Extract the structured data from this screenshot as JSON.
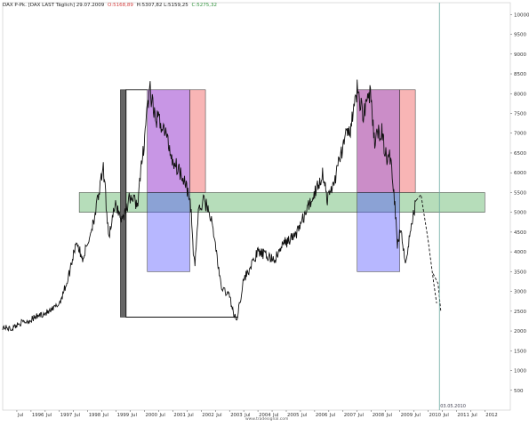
{
  "header": {
    "symbol": "DAX P-Pk. [DAX LAST Täglich] 29.07.2009",
    "open": "O:5168,89",
    "high_low": "H:5307,82 L:5159,25",
    "close": "C:5275,32"
  },
  "footer": {
    "source": "www.tradesignal.com"
  },
  "chart_data": {
    "type": "line",
    "title": "",
    "xlabel": "",
    "ylabel": "",
    "ylim": [
      0,
      10300
    ],
    "xlim": [
      1995.0,
      2012.9
    ],
    "yticks": [
      500,
      1000,
      1500,
      2000,
      2500,
      3000,
      3500,
      4000,
      4500,
      5000,
      5500,
      6000,
      6500,
      7000,
      7500,
      8000,
      8500,
      9000,
      9500,
      10000
    ],
    "xticks": [
      {
        "x": 1995.5,
        "label": "Jul"
      },
      {
        "x": 1996.0,
        "label": "1996"
      },
      {
        "x": 1996.5,
        "label": "Jul"
      },
      {
        "x": 1997.0,
        "label": "1997"
      },
      {
        "x": 1997.5,
        "label": "Jul"
      },
      {
        "x": 1998.0,
        "label": "1998"
      },
      {
        "x": 1998.5,
        "label": "Jul"
      },
      {
        "x": 1999.0,
        "label": "1999"
      },
      {
        "x": 1999.5,
        "label": "Jul"
      },
      {
        "x": 2000.0,
        "label": "2000"
      },
      {
        "x": 2000.5,
        "label": "Jul"
      },
      {
        "x": 2001.0,
        "label": "2001"
      },
      {
        "x": 2001.5,
        "label": "Jul"
      },
      {
        "x": 2002.0,
        "label": "2002"
      },
      {
        "x": 2002.5,
        "label": "Jul"
      },
      {
        "x": 2003.0,
        "label": "2003"
      },
      {
        "x": 2003.5,
        "label": "Jul"
      },
      {
        "x": 2004.0,
        "label": "2004"
      },
      {
        "x": 2004.5,
        "label": "Jul"
      },
      {
        "x": 2005.0,
        "label": "2005"
      },
      {
        "x": 2005.5,
        "label": "Jul"
      },
      {
        "x": 2006.0,
        "label": "2006"
      },
      {
        "x": 2006.5,
        "label": "Jul"
      },
      {
        "x": 2007.0,
        "label": "2007"
      },
      {
        "x": 2007.5,
        "label": "Jul"
      },
      {
        "x": 2008.0,
        "label": "2008"
      },
      {
        "x": 2008.5,
        "label": "Jul"
      },
      {
        "x": 2009.0,
        "label": "2009"
      },
      {
        "x": 2009.5,
        "label": "Jul"
      },
      {
        "x": 2010.0,
        "label": "2010"
      },
      {
        "x": 2010.5,
        "label": "Jul"
      },
      {
        "x": 2011.0,
        "label": "2011"
      },
      {
        "x": 2011.5,
        "label": "Jul"
      },
      {
        "x": 2012.0,
        "label": "2012"
      }
    ],
    "series": [
      {
        "style": "solid",
        "points": [
          [
            1995.0,
            2100
          ],
          [
            1995.3,
            2050
          ],
          [
            1995.6,
            2200
          ],
          [
            1995.9,
            2250
          ],
          [
            1996.3,
            2400
          ],
          [
            1996.7,
            2500
          ],
          [
            1997.0,
            2700
          ],
          [
            1997.3,
            3300
          ],
          [
            1997.6,
            4300
          ],
          [
            1997.8,
            3800
          ],
          [
            1998.0,
            4200
          ],
          [
            1998.3,
            5100
          ],
          [
            1998.55,
            6100
          ],
          [
            1998.65,
            5200
          ],
          [
            1998.75,
            4400
          ],
          [
            1998.85,
            4800
          ],
          [
            1999.0,
            5200
          ],
          [
            1999.2,
            4800
          ],
          [
            1999.5,
            5400
          ],
          [
            1999.75,
            5200
          ],
          [
            1999.95,
            6500
          ],
          [
            2000.1,
            7700
          ],
          [
            2000.2,
            8050
          ],
          [
            2000.35,
            7400
          ],
          [
            2000.55,
            7300
          ],
          [
            2000.75,
            7000
          ],
          [
            2001.0,
            6300
          ],
          [
            2001.2,
            6100
          ],
          [
            2001.45,
            5800
          ],
          [
            2001.65,
            5000
          ],
          [
            2001.72,
            4000
          ],
          [
            2001.78,
            3700
          ],
          [
            2001.9,
            5000
          ],
          [
            2002.1,
            5300
          ],
          [
            2002.3,
            5000
          ],
          [
            2002.5,
            4200
          ],
          [
            2002.7,
            3100
          ],
          [
            2002.85,
            3000
          ],
          [
            2003.0,
            2900
          ],
          [
            2003.15,
            2400
          ],
          [
            2003.25,
            2280
          ],
          [
            2003.5,
            3300
          ],
          [
            2003.8,
            3700
          ],
          [
            2004.0,
            4000
          ],
          [
            2004.3,
            3900
          ],
          [
            2004.6,
            3800
          ],
          [
            2004.9,
            4200
          ],
          [
            2005.3,
            4400
          ],
          [
            2005.7,
            5000
          ],
          [
            2006.0,
            5500
          ],
          [
            2006.3,
            6000
          ],
          [
            2006.45,
            5300
          ],
          [
            2006.7,
            5800
          ],
          [
            2007.0,
            6700
          ],
          [
            2007.3,
            7200
          ],
          [
            2007.5,
            8100
          ],
          [
            2007.7,
            7500
          ],
          [
            2007.95,
            8050
          ],
          [
            2008.1,
            6800
          ],
          [
            2008.35,
            7100
          ],
          [
            2008.55,
            6300
          ],
          [
            2008.7,
            6400
          ],
          [
            2008.85,
            5000
          ],
          [
            2008.92,
            4200
          ],
          [
            2009.05,
            4600
          ],
          [
            2009.2,
            3700
          ],
          [
            2009.35,
            4400
          ],
          [
            2009.5,
            5000
          ],
          [
            2009.58,
            5300
          ]
        ]
      },
      {
        "style": "dashed",
        "points": [
          [
            2009.58,
            5300
          ],
          [
            2009.75,
            5450
          ],
          [
            2010.0,
            4300
          ],
          [
            2010.2,
            3200
          ],
          [
            2010.3,
            2700
          ]
        ]
      },
      {
        "style": "dashed",
        "points": [
          [
            2010.18,
            3450
          ],
          [
            2010.35,
            3200
          ],
          [
            2010.45,
            2500
          ]
        ]
      }
    ],
    "annotations": {
      "bands": [
        {
          "x0": 1997.7,
          "x1": 2012.0,
          "y0": 5000,
          "y1": 5500,
          "color": "#2e9d3a",
          "opacity": 0.35
        }
      ],
      "rects": [
        {
          "x0": 2000.1,
          "x1": 2001.6,
          "y0": 5500,
          "y1": 8100,
          "color": "#9b3fd0",
          "opacity": 0.55
        },
        {
          "x0": 2001.6,
          "x1": 2002.15,
          "y0": 5500,
          "y1": 8100,
          "color": "#ef5c5c",
          "opacity": 0.45
        },
        {
          "x0": 2000.1,
          "x1": 2001.6,
          "y0": 3500,
          "y1": 5500,
          "color": "#4b4bff",
          "opacity": 0.4
        },
        {
          "x0": 2007.5,
          "x1": 2009.0,
          "y0": 5500,
          "y1": 8100,
          "color": "#a0309a",
          "opacity": 0.55
        },
        {
          "x0": 2009.0,
          "x1": 2009.55,
          "y0": 5500,
          "y1": 8100,
          "color": "#ef5c5c",
          "opacity": 0.45
        },
        {
          "x0": 2007.5,
          "x1": 2009.0,
          "y0": 3500,
          "y1": 5500,
          "color": "#4b4bff",
          "opacity": 0.4
        }
      ],
      "dark_bar": {
        "x0": 1999.15,
        "x1": 1999.35,
        "y0": 2350,
        "y1": 8100,
        "color": "#666666"
      },
      "outline": {
        "x0": 1999.35,
        "x1": 2000.1,
        "y_top": 8100,
        "y_bottom": 2350,
        "x_bottom_end": 2003.3
      },
      "vline": {
        "x": 2010.4,
        "color": "#6aa9a0",
        "label": "03.05.2010"
      }
    }
  }
}
